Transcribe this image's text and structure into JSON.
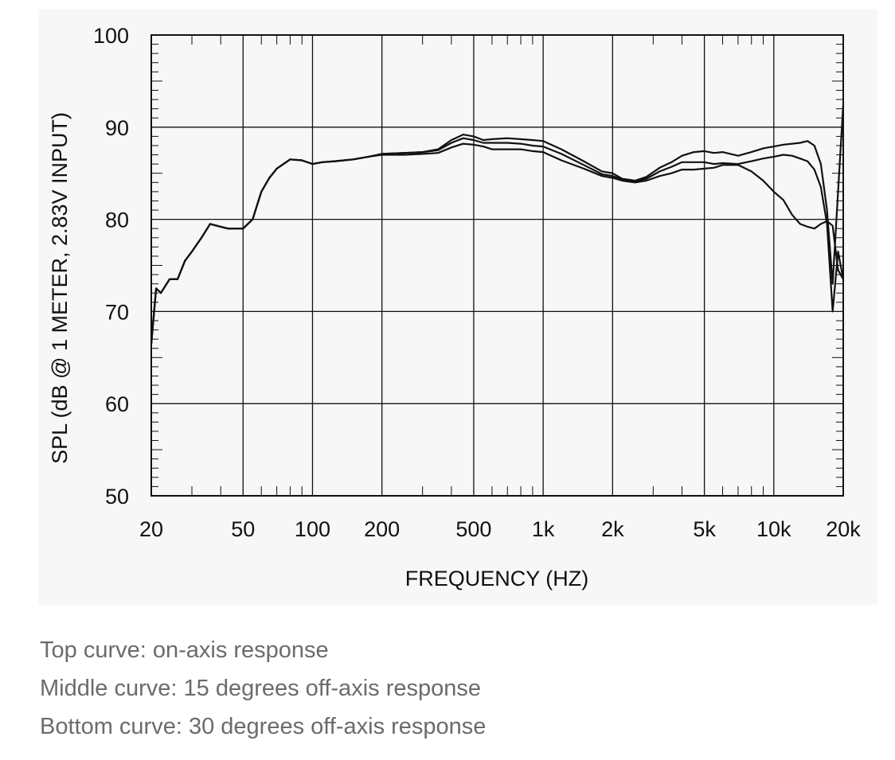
{
  "chart_data": {
    "type": "line",
    "x_scale": "log",
    "xlabel": "FREQUENCY  (HZ)",
    "ylabel": "SPL (dB @ 1 METER, 2.83V INPUT)",
    "xlim": [
      20,
      20000
    ],
    "ylim": [
      50,
      100
    ],
    "grid": true,
    "x_major_ticks": [
      {
        "value": 20,
        "label": "20"
      },
      {
        "value": 50,
        "label": "50"
      },
      {
        "value": 100,
        "label": "100"
      },
      {
        "value": 200,
        "label": "200"
      },
      {
        "value": 500,
        "label": "500"
      },
      {
        "value": 1000,
        "label": "1k"
      },
      {
        "value": 2000,
        "label": "2k"
      },
      {
        "value": 5000,
        "label": "5k"
      },
      {
        "value": 10000,
        "label": "10k"
      },
      {
        "value": 20000,
        "label": "20k"
      }
    ],
    "y_ticks": [
      {
        "value": 50,
        "label": "50"
      },
      {
        "value": 60,
        "label": "60"
      },
      {
        "value": 70,
        "label": "70"
      },
      {
        "value": 80,
        "label": "80"
      },
      {
        "value": 90,
        "label": "90"
      },
      {
        "value": 100,
        "label": "100"
      }
    ],
    "series": [
      {
        "x": [
          20,
          21,
          22,
          24,
          26,
          28,
          30,
          33,
          36,
          40,
          43,
          47,
          50,
          55,
          60,
          65,
          70,
          80,
          90,
          100,
          110,
          125,
          150,
          175,
          200,
          250,
          300,
          350,
          400,
          450,
          500,
          550,
          600,
          700,
          800,
          900,
          1000,
          1200,
          1500,
          1800,
          2000,
          2200,
          2500,
          2800,
          3200,
          3600,
          4000,
          4500,
          5000,
          5500,
          6000,
          7000,
          8000,
          9000,
          10000,
          11000,
          12000,
          13000,
          14000,
          15000,
          16000,
          17000,
          18000,
          19000,
          20000
        ],
        "y": [
          66.5,
          72.5,
          72,
          73.5,
          73.5,
          75.5,
          76.5,
          78,
          79.5,
          79.2,
          79,
          79,
          79,
          80,
          83,
          84.5,
          85.5,
          86.5,
          86.4,
          86,
          86.2,
          86.3,
          86.5,
          86.8,
          87.1,
          87.2,
          87.3,
          87.6,
          88.6,
          89.2,
          89.0,
          88.6,
          88.7,
          88.8,
          88.7,
          88.6,
          88.5,
          87.6,
          86.3,
          85.2,
          85.0,
          84.4,
          84.2,
          84.6,
          85.6,
          86.2,
          86.9,
          87.3,
          87.4,
          87.2,
          87.3,
          86.9,
          87.3,
          87.7,
          87.9,
          88.1,
          88.2,
          88.3,
          88.5,
          88.0,
          86.0,
          81.0,
          73.0,
          83.0,
          92.5
        ]
      },
      {
        "x": [
          20,
          21,
          22,
          24,
          26,
          28,
          30,
          33,
          36,
          40,
          43,
          47,
          50,
          55,
          60,
          65,
          70,
          80,
          90,
          100,
          110,
          125,
          150,
          175,
          200,
          250,
          300,
          350,
          400,
          450,
          500,
          550,
          600,
          700,
          800,
          900,
          1000,
          1200,
          1500,
          1800,
          2000,
          2200,
          2500,
          2800,
          3200,
          3600,
          4000,
          4500,
          5000,
          5500,
          6000,
          7000,
          8000,
          9000,
          10000,
          11000,
          12000,
          13000,
          14000,
          15000,
          16000,
          17000,
          18000,
          19000,
          20000
        ],
        "y": [
          66.5,
          72.5,
          72,
          73.5,
          73.5,
          75.5,
          76.5,
          78,
          79.5,
          79.2,
          79,
          79,
          79,
          80,
          83,
          84.5,
          85.5,
          86.5,
          86.4,
          86,
          86.2,
          86.3,
          86.5,
          86.8,
          87.1,
          87.2,
          87.3,
          87.5,
          88.3,
          88.8,
          88.6,
          88.3,
          88.3,
          88.3,
          88.2,
          88.0,
          87.9,
          87.1,
          85.9,
          84.9,
          84.7,
          84.3,
          84.1,
          84.4,
          85.2,
          85.7,
          86.2,
          86.2,
          86.2,
          86.0,
          86.1,
          86.0,
          86.3,
          86.6,
          86.8,
          87.0,
          86.9,
          86.6,
          86.3,
          85.4,
          83.5,
          79.5,
          70.0,
          76.5,
          73.5
        ]
      },
      {
        "x": [
          20,
          21,
          22,
          24,
          26,
          28,
          30,
          33,
          36,
          40,
          43,
          47,
          50,
          55,
          60,
          65,
          70,
          80,
          90,
          100,
          110,
          125,
          150,
          175,
          200,
          250,
          300,
          350,
          400,
          450,
          500,
          550,
          600,
          700,
          800,
          900,
          1000,
          1200,
          1500,
          1800,
          2000,
          2200,
          2500,
          2800,
          3200,
          3600,
          4000,
          4500,
          5000,
          5500,
          6000,
          7000,
          8000,
          9000,
          10000,
          11000,
          12000,
          13000,
          14000,
          15000,
          16000,
          17000,
          18000,
          19000,
          20000
        ],
        "y": [
          66.5,
          72.5,
          72,
          73.5,
          73.5,
          75.5,
          76.5,
          78,
          79.5,
          79.2,
          79,
          79,
          79,
          80,
          83,
          84.5,
          85.5,
          86.5,
          86.4,
          86,
          86.2,
          86.3,
          86.5,
          86.8,
          87.0,
          87.0,
          87.1,
          87.2,
          87.8,
          88.2,
          88.1,
          87.9,
          87.6,
          87.6,
          87.6,
          87.4,
          87.3,
          86.4,
          85.5,
          84.7,
          84.5,
          84.2,
          84.0,
          84.2,
          84.7,
          85.0,
          85.4,
          85.4,
          85.5,
          85.6,
          85.9,
          85.9,
          85.2,
          84.2,
          83.0,
          82.1,
          80.5,
          79.5,
          79.2,
          79.0,
          79.5,
          79.8,
          79.3,
          74.5,
          73.5
        ]
      }
    ]
  },
  "captions": [
    "Top curve: on-axis response",
    "Middle curve: 15 degrees off-axis response",
    "Bottom curve: 30 degrees off-axis response"
  ]
}
